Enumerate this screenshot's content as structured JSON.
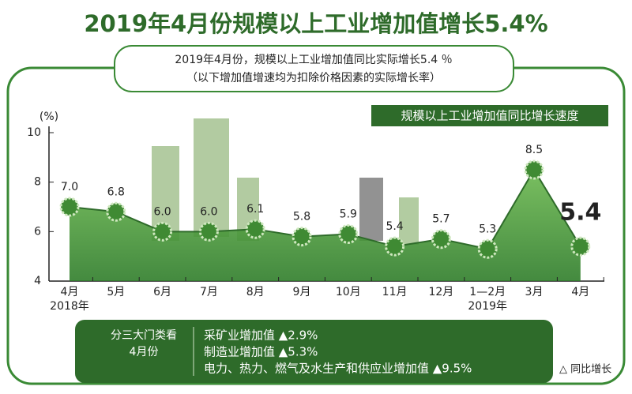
{
  "chart_data": {
    "type": "area",
    "title": "2019年4月份规模以上工业增加值增长5.4%",
    "subtitle": [
      "2019年4月份，规模以上工业增加值同比实际增长5.4 ％",
      "（以下增加值增速均为扣除价格因素的实际增长率）"
    ],
    "y_label": "(%)",
    "categories": [
      "4月",
      "5月",
      "6月",
      "7月",
      "8月",
      "9月",
      "10月",
      "11月",
      "12月",
      "1—2月",
      "3月",
      "4月"
    ],
    "year_labels": [
      "2018年",
      null,
      null,
      null,
      null,
      null,
      null,
      null,
      null,
      "2019年",
      null,
      null
    ],
    "series": [
      {
        "name": "规模以上工业增加值同比增长速度",
        "color": "#4a9a3c",
        "values": [
          7.0,
          6.8,
          6.0,
          6.0,
          6.1,
          5.8,
          5.9,
          5.4,
          5.7,
          5.3,
          8.5,
          5.4
        ],
        "value_labels": [
          "7.0",
          "6.8",
          "6.0",
          "6.0",
          "6.1",
          "5.8",
          "5.9",
          "5.4",
          "5.7",
          "5.3",
          "8.5",
          "5.4"
        ]
      }
    ],
    "ylim": [
      4,
      10
    ],
    "yticks": [
      4,
      6,
      8,
      10
    ]
  },
  "breakdown": {
    "heading": [
      "分三大门类看",
      "4月份"
    ],
    "items": [
      "采矿业增加值 ▲2.9%",
      "制造业增加值 ▲5.3%",
      "电力、热力、燃气及水生产和供应业增加值 ▲9.5%"
    ],
    "note": "△ 同比增长"
  }
}
